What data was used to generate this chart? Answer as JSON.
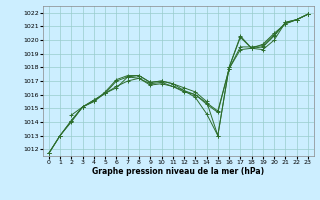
{
  "xlabel": "Graphe pression niveau de la mer (hPa)",
  "ylabel": "",
  "background_color": "#cceeff",
  "grid_color": "#99cccc",
  "line_color": "#2d6e2d",
  "xlim": [
    -0.5,
    23.5
  ],
  "ylim": [
    1011.5,
    1022.5
  ],
  "yticks": [
    1012,
    1013,
    1014,
    1015,
    1016,
    1017,
    1018,
    1019,
    1020,
    1021,
    1022
  ],
  "xticks": [
    0,
    1,
    2,
    3,
    4,
    5,
    6,
    7,
    8,
    9,
    10,
    11,
    12,
    13,
    14,
    15,
    16,
    17,
    18,
    19,
    20,
    21,
    22,
    23
  ],
  "series": [
    {
      "x": [
        0,
        1,
        2,
        3,
        4,
        5,
        6,
        7,
        8,
        9,
        10,
        11,
        12,
        13,
        14,
        15,
        16,
        17,
        18,
        19,
        20,
        21,
        22,
        23
      ],
      "y": [
        1011.7,
        1013.0,
        1014.0,
        1015.1,
        1015.5,
        1016.2,
        1017.1,
        1017.4,
        1017.4,
        1016.9,
        1017.0,
        1016.8,
        1016.5,
        1016.2,
        1015.5,
        1013.0,
        1018.0,
        1020.3,
        1019.4,
        1019.5,
        1020.3,
        1021.3,
        1021.5,
        1021.9
      ]
    },
    {
      "x": [
        0,
        1,
        2,
        3,
        4,
        5,
        6,
        7,
        8,
        9,
        10,
        11,
        12,
        13,
        14,
        15,
        16,
        17,
        18,
        19,
        20,
        21,
        22,
        23
      ],
      "y": [
        1011.7,
        1013.0,
        1014.1,
        1015.1,
        1015.5,
        1016.1,
        1016.6,
        1017.0,
        1017.2,
        1016.7,
        1016.8,
        1016.6,
        1016.2,
        1016.0,
        1015.3,
        1014.7,
        1017.9,
        1019.3,
        1019.4,
        1019.7,
        1020.5,
        1021.2,
        1021.5,
        1021.9
      ]
    },
    {
      "x": [
        2,
        3,
        4,
        5,
        6,
        7,
        8,
        9,
        10,
        11,
        12,
        13,
        14,
        15,
        16,
        17,
        18,
        19,
        20,
        21,
        22,
        23
      ],
      "y": [
        1014.5,
        1015.1,
        1015.6,
        1016.1,
        1016.5,
        1017.3,
        1017.4,
        1016.9,
        1017.0,
        1016.8,
        1016.3,
        1015.8,
        1014.6,
        1013.0,
        1018.0,
        1020.2,
        1019.4,
        1019.3,
        1020.0,
        1021.3,
        1021.5,
        1021.9
      ]
    },
    {
      "x": [
        0,
        1,
        2,
        3,
        4,
        5,
        6,
        7,
        8,
        9,
        10,
        11,
        12,
        13,
        14,
        15,
        16,
        17,
        18,
        19,
        20,
        21,
        22,
        23
      ],
      "y": [
        1011.7,
        1013.0,
        1014.1,
        1015.1,
        1015.6,
        1016.1,
        1017.0,
        1017.3,
        1017.2,
        1016.8,
        1016.9,
        1016.6,
        1016.3,
        1016.0,
        1015.4,
        1014.8,
        1017.9,
        1019.5,
        1019.5,
        1019.6,
        1020.4,
        1021.2,
        1021.5,
        1021.9
      ]
    }
  ]
}
